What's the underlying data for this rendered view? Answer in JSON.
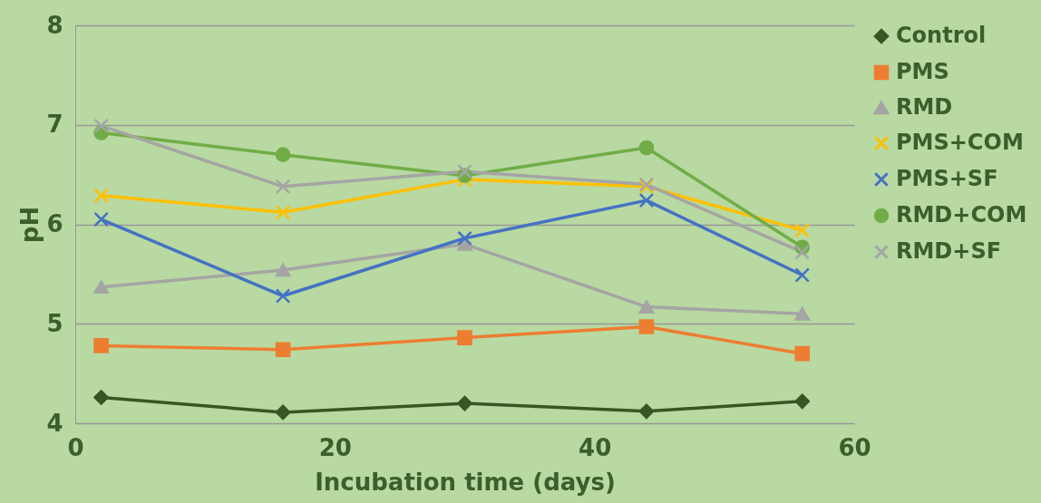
{
  "chart_data": {
    "type": "line",
    "xlabel": "Incubation time (days)",
    "ylabel": "pH",
    "x": [
      2,
      16,
      30,
      44,
      56
    ],
    "xlim": [
      0,
      60
    ],
    "xticks": [
      0,
      20,
      40,
      60
    ],
    "ylim": [
      4,
      8
    ],
    "yticks": [
      4,
      5,
      6,
      7,
      8
    ],
    "grid": "y",
    "legend": "right",
    "series": [
      {
        "name": "Control",
        "color": "#375623",
        "marker": "diamond",
        "values": [
          4.26,
          4.11,
          4.2,
          4.12,
          4.22
        ]
      },
      {
        "name": "PMS",
        "color": "#ed7d31",
        "marker": "square",
        "values": [
          4.78,
          4.74,
          4.86,
          4.97,
          4.7
        ]
      },
      {
        "name": "RMD",
        "color": "#a5a5a5",
        "marker": "triangle",
        "values": [
          5.37,
          5.54,
          5.8,
          5.17,
          5.1
        ]
      },
      {
        "name": "PMS+COM",
        "color": "#ffc000",
        "marker": "cross",
        "values": [
          6.29,
          6.12,
          6.45,
          6.38,
          5.94
        ]
      },
      {
        "name": "PMS+SF",
        "color": "#4472c4",
        "marker": "cross",
        "values": [
          6.05,
          5.28,
          5.86,
          6.24,
          5.49
        ]
      },
      {
        "name": "RMD+COM",
        "color": "#70ad47",
        "marker": "circle",
        "values": [
          6.92,
          6.7,
          6.49,
          6.77,
          5.77
        ]
      },
      {
        "name": "RMD+SF",
        "color": "#a5a5a5",
        "marker": "cross",
        "values": [
          6.99,
          6.38,
          6.53,
          6.4,
          5.72
        ]
      }
    ]
  }
}
